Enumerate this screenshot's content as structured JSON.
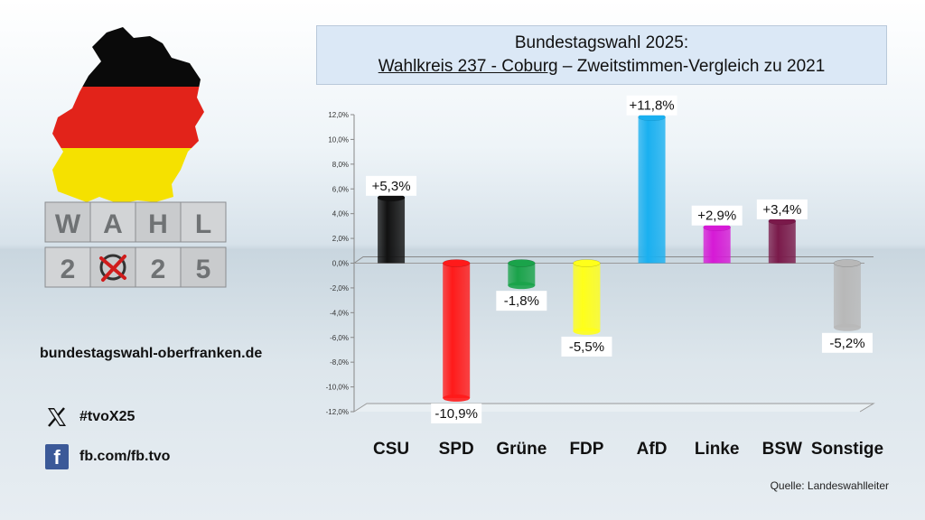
{
  "header": {
    "line1": "Bundestagswahl 2025:",
    "line2_underlined": "Wahlkreis 237 - Coburg",
    "line2_rest": " – Zweitstimmen-Vergleich zu 2021"
  },
  "logo": {
    "word": "WAHL",
    "year": "2025",
    "icon": "germany-map-ballot-cubes-logo"
  },
  "website": "bundestagswahl-oberfranken.de",
  "social": {
    "x_handle": "#tvoX25",
    "x_icon": "x-logo-icon",
    "facebook": "fb.com/fb.tvo",
    "facebook_icon": "facebook-icon"
  },
  "source": "Quelle: Landeswahlleiter",
  "chart_data": {
    "type": "bar",
    "title": "",
    "xlabel": "",
    "ylabel": "",
    "categories": [
      "CSU",
      "SPD",
      "Grüne",
      "FDP",
      "AfD",
      "Linke",
      "BSW",
      "Sonstige"
    ],
    "values": [
      5.3,
      -10.9,
      -1.8,
      -5.5,
      11.8,
      2.9,
      3.4,
      -5.2
    ],
    "data_labels": [
      "+5,3%",
      "-10,9%",
      "-1,8%",
      "-5,5%",
      "+11,8%",
      "+2,9%",
      "+3,4%",
      "-5,2%"
    ],
    "colors": [
      "#111111",
      "#ff1a1a",
      "#1aa34a",
      "#ffff1a",
      "#1ab0f0",
      "#d61ad6",
      "#7a1a4a",
      "#b8b8b8"
    ],
    "ylim": [
      -12,
      12
    ],
    "yticks": [
      12,
      10,
      8,
      6,
      4,
      2,
      0,
      -2,
      -4,
      -6,
      -8,
      -10,
      -12
    ],
    "ytick_labels": [
      "12,0%",
      "10,0%",
      "8,0%",
      "6,0%",
      "4,0%",
      "2,0%",
      "0,0%",
      "-2,0%",
      "-4,0%",
      "-6,0%",
      "-8,0%",
      "-10,0%",
      "-12,0%"
    ],
    "grid": false,
    "legend": "none"
  }
}
